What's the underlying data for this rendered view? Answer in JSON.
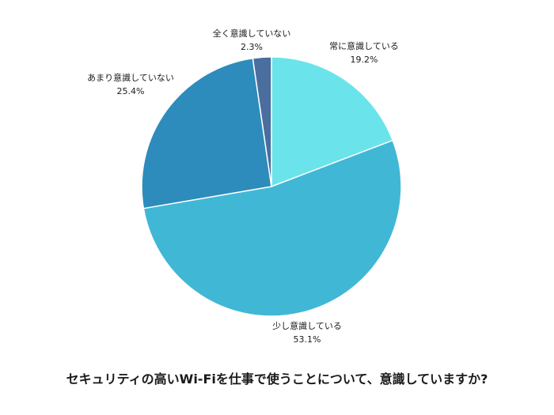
{
  "caption": "セキュリティの高いWi-Fiを仕事で使うことについて、意識していますか?",
  "chart_data": {
    "type": "pie",
    "title": "セキュリティの高いWi-Fiを仕事で使うことについて、意識していますか?",
    "start_angle_deg": 0,
    "direction": "clockwise",
    "slices": [
      {
        "label": "常に意識している",
        "value": 19.2,
        "value_label": "19.2%",
        "color": "#6ae4ea"
      },
      {
        "label": "少し意識している",
        "value": 53.1,
        "value_label": "53.1%",
        "color": "#41b7d6"
      },
      {
        "label": "あまり意識していない",
        "value": 25.4,
        "value_label": "25.4%",
        "color": "#2d8cbb"
      },
      {
        "label": "全く意識していない",
        "value": 2.3,
        "value_label": "2.3%",
        "color": "#4a6e9e"
      }
    ]
  }
}
